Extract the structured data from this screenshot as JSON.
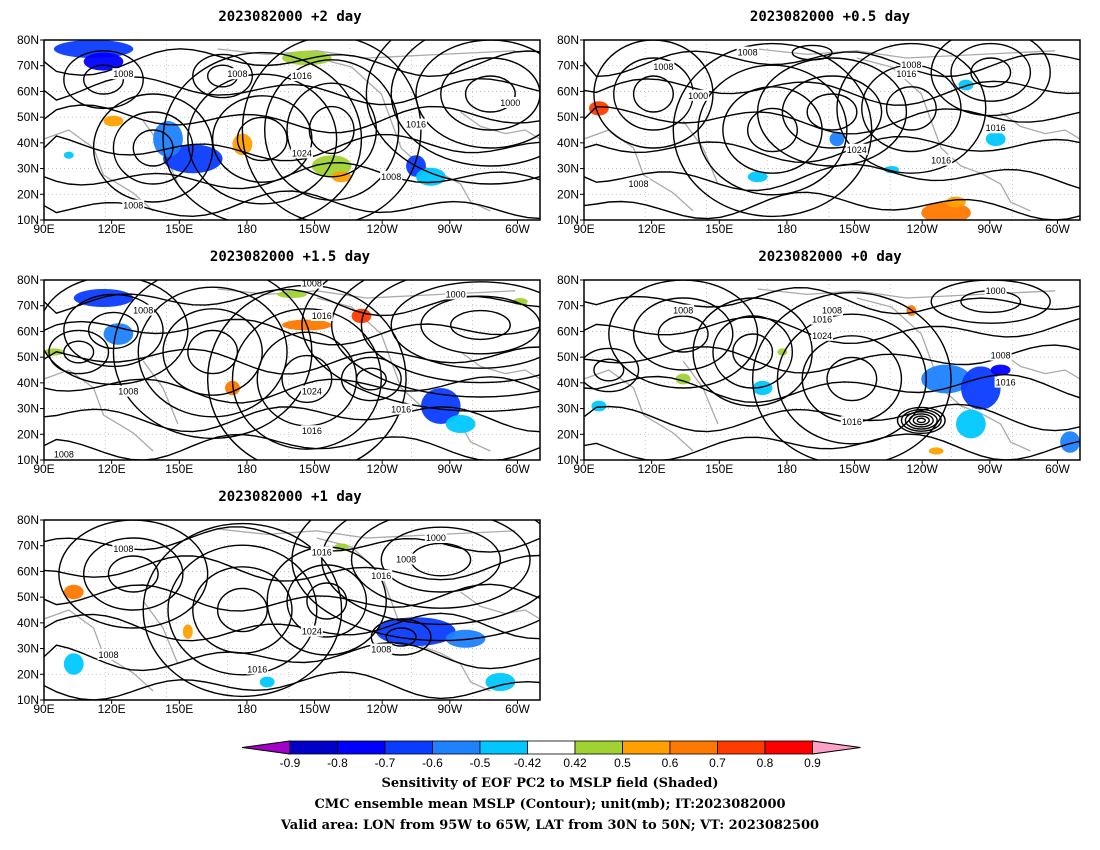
{
  "panels": [
    {
      "id": "p2",
      "title": "2023082000 +2 day"
    },
    {
      "id": "p05",
      "title": "2023082000 +0.5 day"
    },
    {
      "id": "p15",
      "title": "2023082000 +1.5 day"
    },
    {
      "id": "p0",
      "title": "2023082000 +0 day"
    },
    {
      "id": "p1",
      "title": "2023082000 +1 day"
    }
  ],
  "lat_ticks": [
    "80N",
    "70N",
    "60N",
    "50N",
    "40N",
    "30N",
    "20N",
    "10N"
  ],
  "lon_ticks": [
    "90E",
    "120E",
    "150E",
    "180",
    "150W",
    "120W",
    "90W",
    "60W"
  ],
  "contour_labels": [
    "1000",
    "1008",
    "1016",
    "1024"
  ],
  "colorbar": {
    "labels": [
      "-0.9",
      "-0.8",
      "-0.7",
      "-0.6",
      "-0.5",
      "-0.42",
      "0.42",
      "0.5",
      "0.6",
      "0.7",
      "0.8",
      "0.9"
    ],
    "colors": [
      "#a000c8",
      "#0000c8",
      "#0000ff",
      "#0a3cff",
      "#1e82ff",
      "#00c8ff",
      "#ffffff",
      "#a0d232",
      "#ffa000",
      "#ff7800",
      "#ff3c00",
      "#ff0000",
      "#ffa0c8"
    ]
  },
  "caption": {
    "line1": "Sensitivity of EOF PC2 to MSLP field (Shaded)",
    "line2": "CMC ensemble mean MSLP (Contour); unit(mb); IT:2023082000",
    "line3": "Valid area: LON from 95W to 65W, LAT from 30N to 50N; VT: 2023082500"
  }
}
